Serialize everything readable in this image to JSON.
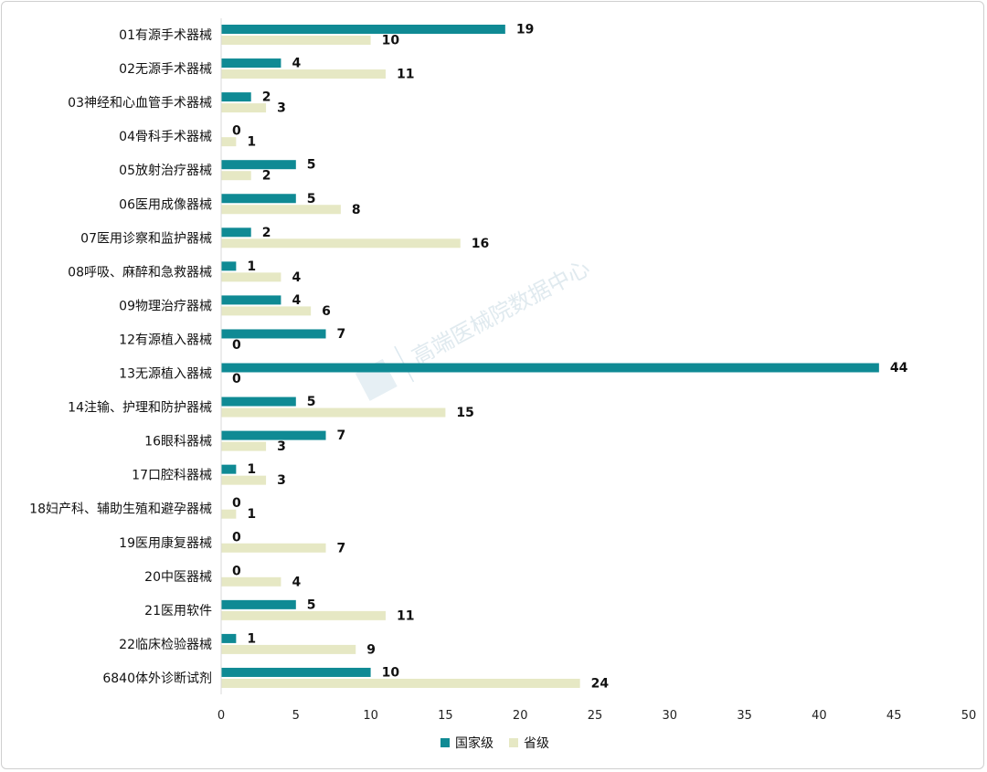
{
  "chart_data": {
    "type": "bar",
    "orientation": "horizontal",
    "categories": [
      "01有源手术器械",
      "02无源手术器械",
      "03神经和心血管手术器械",
      "04骨科手术器械",
      "05放射治疗器械",
      "06医用成像器械",
      "07医用诊察和监护器械",
      "08呼吸、麻醉和急救器械",
      "09物理治疗器械",
      "12有源植入器械",
      "13无源植入器械",
      "14注输、护理和防护器械",
      "16眼科器械",
      "17口腔科器械",
      "18妇产科、辅助生殖和避孕器械",
      "19医用康复器械",
      "20中医器械",
      "21医用软件",
      "22临床检验器械",
      "6840体外诊断试剂"
    ],
    "series": [
      {
        "name": "国家级",
        "color": "#0f8a94",
        "values": [
          19,
          4,
          2,
          0,
          5,
          5,
          2,
          1,
          4,
          7,
          44,
          5,
          7,
          1,
          0,
          0,
          0,
          5,
          1,
          10
        ]
      },
      {
        "name": "省级",
        "color": "#e6e8c4",
        "values": [
          10,
          11,
          3,
          1,
          2,
          8,
          16,
          4,
          6,
          0,
          0,
          15,
          3,
          3,
          1,
          7,
          4,
          11,
          9,
          24
        ]
      }
    ],
    "xlim": [
      0,
      50
    ],
    "xticks": [
      "0",
      "5",
      "10",
      "15",
      "20",
      "25",
      "30",
      "35",
      "40",
      "45",
      "50"
    ],
    "grid": false,
    "legend_position": "bottom-center",
    "data_labels": true
  },
  "watermark": "高端医械院数据中心"
}
